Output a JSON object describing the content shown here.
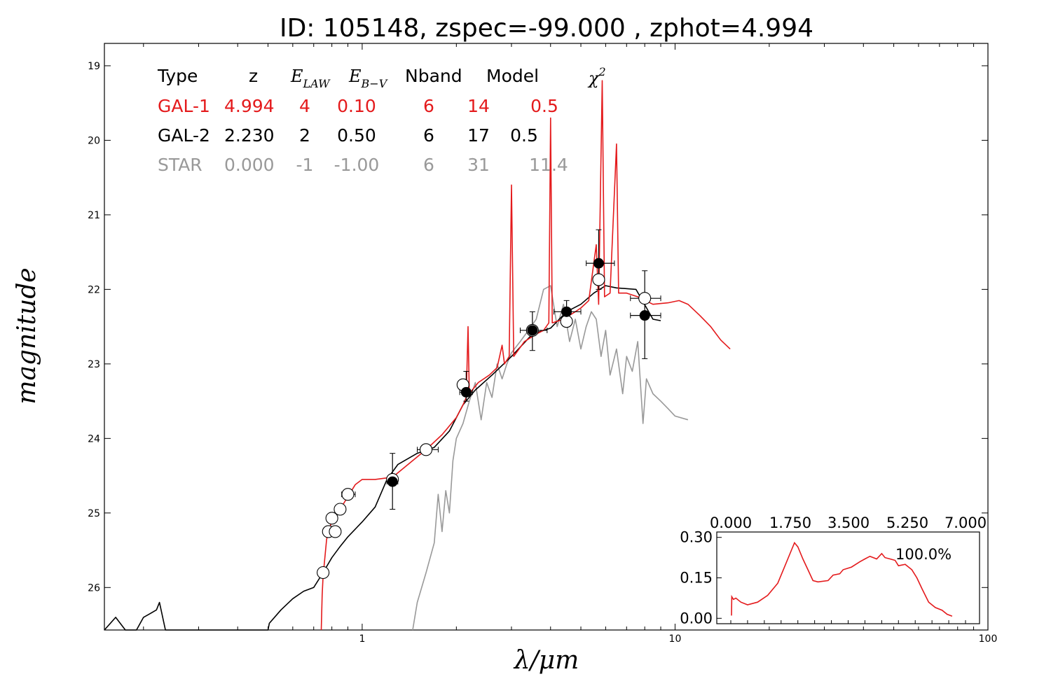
{
  "title": "ID:  105148, zspec=-99.000 , zphot=4.994",
  "colors": {
    "gal1": "#e41a1c",
    "gal2": "#000000",
    "star": "#999999"
  },
  "chart_data": [
    {
      "type": "line",
      "xlabel": "λ/μm",
      "ylabel": "magnitude",
      "xscale": "log",
      "xlim": [
        0.15,
        100
      ],
      "ylim": [
        26.57,
        18.7
      ],
      "x_tick_labels": [
        "1",
        "10",
        "100"
      ],
      "x_tick_values": [
        1,
        10,
        100
      ],
      "y_tick_labels": [
        "19",
        "20",
        "21",
        "22",
        "23",
        "24",
        "25",
        "26"
      ],
      "y_tick_values": [
        19,
        20,
        21,
        22,
        23,
        24,
        25,
        26
      ],
      "table": {
        "headers": [
          "Type",
          "z",
          "E",
          "LAW",
          "E",
          "B−V",
          "Nband",
          "Model",
          "χ",
          "2"
        ],
        "rows": [
          {
            "name": "GAL-1",
            "cells": [
              "GAL-1",
              "4.994",
              "4",
              "0.10",
              "6",
              "14",
              "0.5"
            ]
          },
          {
            "name": "GAL-2",
            "cells": [
              "GAL-2",
              "2.230",
              "2",
              "0.50",
              "6",
              "17",
              "0.5"
            ]
          },
          {
            "name": "STAR",
            "cells": [
              "STAR",
              "0.000",
              "-1",
              "-1.00",
              "6",
              "31",
              "11.4"
            ]
          }
        ]
      },
      "series": [
        {
          "key": "gal1",
          "points": [
            [
              0.74,
              26.57
            ],
            [
              0.745,
              26.1
            ],
            [
              0.75,
              25.85
            ],
            [
              0.77,
              25.35
            ],
            [
              0.8,
              25.1
            ],
            [
              0.85,
              24.95
            ],
            [
              0.9,
              24.78
            ],
            [
              0.95,
              24.62
            ],
            [
              1.0,
              24.55
            ],
            [
              1.1,
              24.55
            ],
            [
              1.25,
              24.52
            ],
            [
              1.4,
              24.35
            ],
            [
              1.6,
              24.15
            ],
            [
              1.8,
              23.95
            ],
            [
              2.0,
              23.72
            ],
            [
              2.1,
              23.55
            ],
            [
              2.15,
              23.45
            ],
            [
              2.18,
              22.5
            ],
            [
              2.2,
              23.4
            ],
            [
              2.35,
              23.25
            ],
            [
              2.55,
              23.15
            ],
            [
              2.7,
              23.05
            ],
            [
              2.8,
              22.75
            ],
            [
              2.85,
              23.0
            ],
            [
              2.95,
              22.9
            ],
            [
              3.0,
              20.6
            ],
            [
              3.05,
              22.9
            ],
            [
              3.3,
              22.7
            ],
            [
              3.6,
              22.6
            ],
            [
              3.8,
              22.55
            ],
            [
              3.95,
              22.45
            ],
            [
              4.0,
              19.7
            ],
            [
              4.05,
              22.45
            ],
            [
              4.4,
              22.4
            ],
            [
              4.8,
              22.3
            ],
            [
              5.0,
              22.25
            ],
            [
              5.3,
              22.15
            ],
            [
              5.6,
              21.4
            ],
            [
              5.7,
              22.2
            ],
            [
              5.85,
              19.2
            ],
            [
              5.95,
              22.1
            ],
            [
              6.2,
              22.05
            ],
            [
              6.5,
              20.05
            ],
            [
              6.6,
              22.05
            ],
            [
              7.0,
              22.05
            ],
            [
              7.6,
              22.1
            ],
            [
              8.5,
              22.2
            ],
            [
              9.5,
              22.18
            ],
            [
              10.3,
              22.15
            ],
            [
              11.0,
              22.2
            ],
            [
              12.0,
              22.35
            ],
            [
              13.0,
              22.5
            ],
            [
              14.0,
              22.68
            ],
            [
              15.0,
              22.8
            ]
          ]
        },
        {
          "key": "gal2",
          "points": [
            [
              0.15,
              26.57
            ],
            [
              0.163,
              26.4
            ],
            [
              0.175,
              26.57
            ],
            [
              0.19,
              26.57
            ],
            [
              0.2,
              26.4
            ],
            [
              0.21,
              26.35
            ],
            [
              0.22,
              26.3
            ],
            [
              0.225,
              26.2
            ],
            [
              0.235,
              26.57
            ],
            [
              0.5,
              26.57
            ],
            [
              0.505,
              26.48
            ],
            [
              0.55,
              26.3
            ],
            [
              0.6,
              26.15
            ],
            [
              0.65,
              26.05
            ],
            [
              0.7,
              26.0
            ],
            [
              0.75,
              25.8
            ],
            [
              0.8,
              25.6
            ],
            [
              0.85,
              25.45
            ],
            [
              0.9,
              25.32
            ],
            [
              1.0,
              25.12
            ],
            [
              1.1,
              24.92
            ],
            [
              1.2,
              24.55
            ],
            [
              1.3,
              24.35
            ],
            [
              1.5,
              24.2
            ],
            [
              1.7,
              24.12
            ],
            [
              1.9,
              23.9
            ],
            [
              2.1,
              23.55
            ],
            [
              2.3,
              23.35
            ],
            [
              2.6,
              23.15
            ],
            [
              3.0,
              22.9
            ],
            [
              3.5,
              22.6
            ],
            [
              4.0,
              22.52
            ],
            [
              4.5,
              22.3
            ],
            [
              5.0,
              22.2
            ],
            [
              5.5,
              22.05
            ],
            [
              6.0,
              21.95
            ],
            [
              6.5,
              21.98
            ],
            [
              7.5,
              22.0
            ],
            [
              8.5,
              22.4
            ],
            [
              9.0,
              22.42
            ]
          ]
        },
        {
          "key": "star",
          "points": [
            [
              1.45,
              26.57
            ],
            [
              1.5,
              26.2
            ],
            [
              1.6,
              25.8
            ],
            [
              1.7,
              25.4
            ],
            [
              1.75,
              24.75
            ],
            [
              1.8,
              25.25
            ],
            [
              1.85,
              24.7
            ],
            [
              1.9,
              25.0
            ],
            [
              1.95,
              24.3
            ],
            [
              2.0,
              24.0
            ],
            [
              2.1,
              23.8
            ],
            [
              2.2,
              23.5
            ],
            [
              2.3,
              23.25
            ],
            [
              2.4,
              23.75
            ],
            [
              2.5,
              23.25
            ],
            [
              2.6,
              23.45
            ],
            [
              2.7,
              23.0
            ],
            [
              2.8,
              23.2
            ],
            [
              2.9,
              23.0
            ],
            [
              3.0,
              22.85
            ],
            [
              3.2,
              22.7
            ],
            [
              3.4,
              22.55
            ],
            [
              3.6,
              22.4
            ],
            [
              3.8,
              22.0
            ],
            [
              4.0,
              21.95
            ],
            [
              4.2,
              22.5
            ],
            [
              4.4,
              22.2
            ],
            [
              4.6,
              22.7
            ],
            [
              4.8,
              22.4
            ],
            [
              5.0,
              22.8
            ],
            [
              5.2,
              22.5
            ],
            [
              5.4,
              22.3
            ],
            [
              5.6,
              22.4
            ],
            [
              5.8,
              22.9
            ],
            [
              6.0,
              22.55
            ],
            [
              6.2,
              23.15
            ],
            [
              6.5,
              22.8
            ],
            [
              6.8,
              23.4
            ],
            [
              7.0,
              22.9
            ],
            [
              7.3,
              23.1
            ],
            [
              7.6,
              22.7
            ],
            [
              7.9,
              23.8
            ],
            [
              8.1,
              23.2
            ],
            [
              8.5,
              23.4
            ],
            [
              9.0,
              23.5
            ],
            [
              9.5,
              23.6
            ],
            [
              10.0,
              23.7
            ],
            [
              11.0,
              23.75
            ]
          ]
        }
      ],
      "observed_points": {
        "open": [
          [
            0.75,
            25.8
          ],
          [
            0.78,
            25.25
          ],
          [
            0.8,
            25.07
          ],
          [
            0.82,
            25.25
          ],
          [
            0.85,
            24.95
          ],
          [
            0.9,
            24.75
          ],
          [
            1.25,
            24.55
          ],
          [
            1.6,
            24.15
          ],
          [
            2.1,
            23.28
          ],
          [
            3.5,
            22.55
          ],
          [
            4.5,
            22.43
          ],
          [
            5.7,
            21.87
          ],
          [
            8.0,
            22.12
          ]
        ],
        "filled": [
          [
            1.25,
            24.58
          ],
          [
            2.15,
            23.38
          ],
          [
            3.5,
            22.55
          ],
          [
            4.5,
            22.3
          ],
          [
            5.7,
            21.65
          ],
          [
            8.0,
            22.35
          ]
        ]
      },
      "error_bars": [
        {
          "x": 1.25,
          "y": 24.58,
          "xlo": 1.2,
          "xhi": 1.3,
          "ylo": 24.95,
          "yhi": 24.2
        },
        {
          "x": 2.15,
          "y": 23.38,
          "xlo": 2.05,
          "xhi": 2.25,
          "ylo": 23.5,
          "yhi": 23.1
        },
        {
          "x": 3.5,
          "y": 22.55,
          "xlo": 3.2,
          "xhi": 3.9,
          "ylo": 22.82,
          "yhi": 22.3
        },
        {
          "x": 4.5,
          "y": 22.3,
          "xlo": 4.1,
          "xhi": 5.0,
          "ylo": 22.45,
          "yhi": 22.15
        },
        {
          "x": 5.7,
          "y": 21.65,
          "xlo": 5.2,
          "xhi": 6.4,
          "ylo": 22.0,
          "yhi": 21.2
        },
        {
          "x": 8.0,
          "y": 22.35,
          "xlo": 7.2,
          "xhi": 9.0,
          "ylo": 22.93,
          "yhi": 21.75
        },
        {
          "x": 1.6,
          "y": 24.15,
          "xlo": 1.5,
          "xhi": 1.75,
          "ylo": 24.15,
          "yhi": 24.15
        },
        {
          "x": 0.9,
          "y": 24.75,
          "xlo": 0.86,
          "xhi": 0.95,
          "ylo": 24.75,
          "yhi": 24.75
        },
        {
          "x": 8.0,
          "y": 22.12,
          "xlo": 7.2,
          "xhi": 9.0,
          "ylo": 22.12,
          "yhi": 22.12
        }
      ]
    },
    {
      "type": "line",
      "inset": true,
      "annotation": "100.0%",
      "xlim": [
        0.0,
        7.0
      ],
      "ylim": [
        -0.02,
        0.32
      ],
      "x_tick_labels": [
        "0.000",
        "1.750",
        "3.500",
        "5.250",
        "7.000"
      ],
      "x_tick_values": [
        0.0,
        1.75,
        3.5,
        5.25,
        7.0
      ],
      "y_tick_labels": [
        "0.00",
        "0.15",
        "0.30"
      ],
      "y_tick_values": [
        0.0,
        0.15,
        0.3
      ],
      "series": [
        {
          "key": "gal1",
          "points": [
            [
              0.02,
              0.01
            ],
            [
              0.03,
              0.08
            ],
            [
              0.08,
              0.07
            ],
            [
              0.15,
              0.075
            ],
            [
              0.3,
              0.06
            ],
            [
              0.5,
              0.05
            ],
            [
              0.8,
              0.06
            ],
            [
              1.1,
              0.085
            ],
            [
              1.4,
              0.13
            ],
            [
              1.6,
              0.19
            ],
            [
              1.8,
              0.25
            ],
            [
              1.9,
              0.28
            ],
            [
              2.0,
              0.265
            ],
            [
              2.15,
              0.22
            ],
            [
              2.3,
              0.18
            ],
            [
              2.45,
              0.14
            ],
            [
              2.6,
              0.135
            ],
            [
              2.9,
              0.14
            ],
            [
              3.05,
              0.16
            ],
            [
              3.25,
              0.165
            ],
            [
              3.35,
              0.18
            ],
            [
              3.6,
              0.19
            ],
            [
              3.85,
              0.21
            ],
            [
              4.0,
              0.22
            ],
            [
              4.15,
              0.23
            ],
            [
              4.35,
              0.22
            ],
            [
              4.5,
              0.24
            ],
            [
              4.6,
              0.225
            ],
            [
              4.75,
              0.22
            ],
            [
              4.9,
              0.215
            ],
            [
              5.0,
              0.195
            ],
            [
              5.2,
              0.2
            ],
            [
              5.4,
              0.18
            ],
            [
              5.55,
              0.15
            ],
            [
              5.7,
              0.11
            ],
            [
              5.9,
              0.06
            ],
            [
              6.1,
              0.04
            ],
            [
              6.3,
              0.03
            ],
            [
              6.45,
              0.015
            ],
            [
              6.6,
              0.008
            ]
          ]
        }
      ]
    }
  ]
}
